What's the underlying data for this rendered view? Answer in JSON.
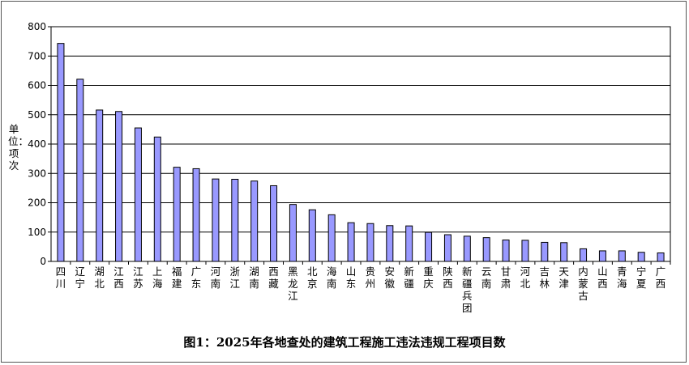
{
  "chart_data": {
    "type": "bar",
    "title": "图1：2025年各地查处的建筑工程施工违法违规工程项目数",
    "ylabel": "单位：项次",
    "xlabel": "",
    "ylim": [
      0,
      800
    ],
    "yticks": [
      0,
      100,
      200,
      300,
      400,
      500,
      600,
      700,
      800
    ],
    "grid": true,
    "legend": "none",
    "bar_color": "#9999ff",
    "categories": [
      "四川",
      "辽宁",
      "湖北",
      "江西",
      "江苏",
      "上海",
      "福建",
      "广东",
      "河南",
      "浙江",
      "湖南",
      "西藏",
      "黑龙江",
      "北京",
      "海南",
      "山东",
      "贵州",
      "安徽",
      "新疆",
      "重庆",
      "陕西",
      "新疆兵团",
      "云南",
      "甘肃",
      "河北",
      "吉林",
      "天津",
      "内蒙古",
      "山西",
      "青海",
      "宁夏",
      "广西"
    ],
    "values": [
      743,
      621,
      516,
      511,
      455,
      424,
      321,
      316,
      281,
      280,
      274,
      258,
      194,
      176,
      159,
      132,
      129,
      122,
      121,
      99,
      91,
      86,
      81,
      73,
      72,
      65,
      64,
      43,
      36,
      36,
      31,
      29
    ]
  }
}
